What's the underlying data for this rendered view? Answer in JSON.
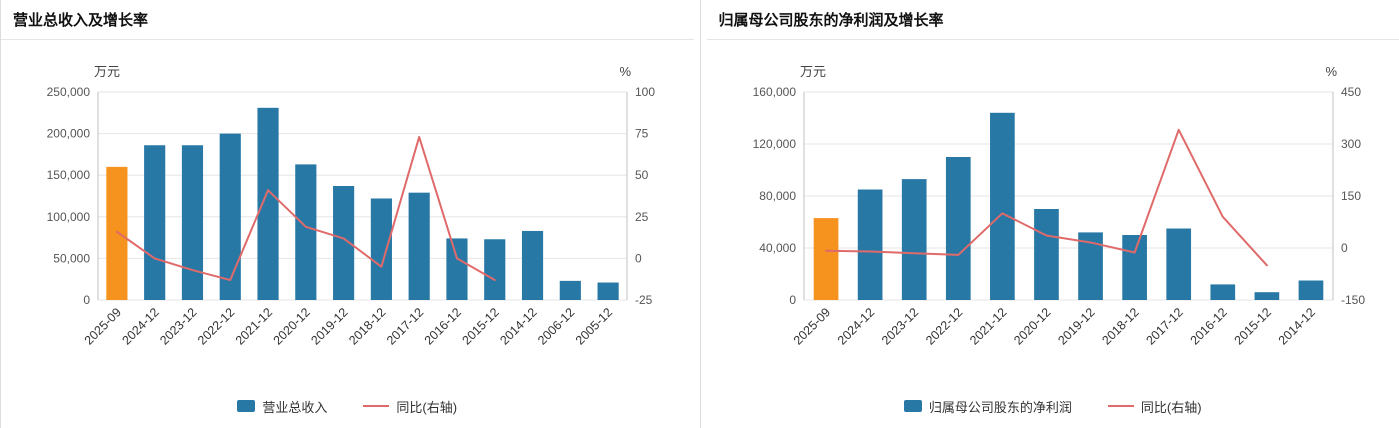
{
  "chart_data": [
    {
      "type": "bar+line",
      "title": "营业总收入及增长率",
      "unit_left": "万元",
      "unit_right": "%",
      "categories": [
        "2025-09",
        "2024-12",
        "2023-12",
        "2022-12",
        "2021-12",
        "2020-12",
        "2019-12",
        "2018-12",
        "2017-12",
        "2016-12",
        "2015-12",
        "2014-12",
        "2006-12",
        "2005-12"
      ],
      "series": [
        {
          "name": "营业总收入",
          "type": "bar",
          "axis": "left",
          "values": [
            160000,
            186000,
            186000,
            200000,
            231000,
            163000,
            137000,
            122000,
            129000,
            74000,
            73000,
            83000,
            23000,
            21000
          ]
        },
        {
          "name": "同比(右轴)",
          "type": "line",
          "axis": "right",
          "values": [
            16,
            0,
            -7,
            -13,
            41,
            19,
            12,
            -5,
            73,
            0,
            -13,
            null,
            null,
            null
          ]
        }
      ],
      "left_axis": {
        "min": 0,
        "max": 250000,
        "step": 50000,
        "ticks": [
          "0",
          "50,000",
          "100,000",
          "150,000",
          "200,000",
          "250,000"
        ]
      },
      "right_axis": {
        "min": -25,
        "max": 100,
        "step": 25,
        "ticks": [
          "-25",
          "0",
          "25",
          "50",
          "75",
          "100"
        ]
      },
      "colors": {
        "bar": "#2878a6",
        "bar_highlight": "#f6921e",
        "line": "#e06a6a"
      },
      "highlight_index": 0,
      "grid": true,
      "legend_position": "bottom",
      "legend": [
        {
          "label": "营业总收入",
          "swatch": "bar"
        },
        {
          "label": "同比(右轴)",
          "swatch": "line"
        }
      ]
    },
    {
      "type": "bar+line",
      "title": "归属母公司股东的净利润及增长率",
      "unit_left": "万元",
      "unit_right": "%",
      "categories": [
        "2025-09",
        "2024-12",
        "2023-12",
        "2022-12",
        "2021-12",
        "2020-12",
        "2019-12",
        "2018-12",
        "2017-12",
        "2016-12",
        "2015-12",
        "2014-12"
      ],
      "series": [
        {
          "name": "归属母公司股东的净利润",
          "type": "bar",
          "axis": "left",
          "values": [
            63000,
            85000,
            93000,
            110000,
            144000,
            70000,
            52000,
            50000,
            55000,
            12000,
            6000,
            15000
          ]
        },
        {
          "name": "同比(右轴)",
          "type": "line",
          "axis": "right",
          "values": [
            -8,
            -10,
            -15,
            -20,
            100,
            36,
            16,
            -13,
            341,
            90,
            -50,
            null
          ]
        }
      ],
      "left_axis": {
        "min": 0,
        "max": 160000,
        "step": 40000,
        "ticks": [
          "0",
          "40,000",
          "80,000",
          "120,000",
          "160,000"
        ]
      },
      "right_axis": {
        "min": -150,
        "max": 450,
        "step": 150,
        "ticks": [
          "-150",
          "0",
          "150",
          "300",
          "450"
        ]
      },
      "colors": {
        "bar": "#2878a6",
        "bar_highlight": "#f6921e",
        "line": "#e06a6a"
      },
      "highlight_index": 0,
      "grid": true,
      "legend_position": "bottom",
      "legend": [
        {
          "label": "归属母公司股东的净利润",
          "swatch": "bar"
        },
        {
          "label": "同比(右轴)",
          "swatch": "line"
        }
      ]
    }
  ]
}
